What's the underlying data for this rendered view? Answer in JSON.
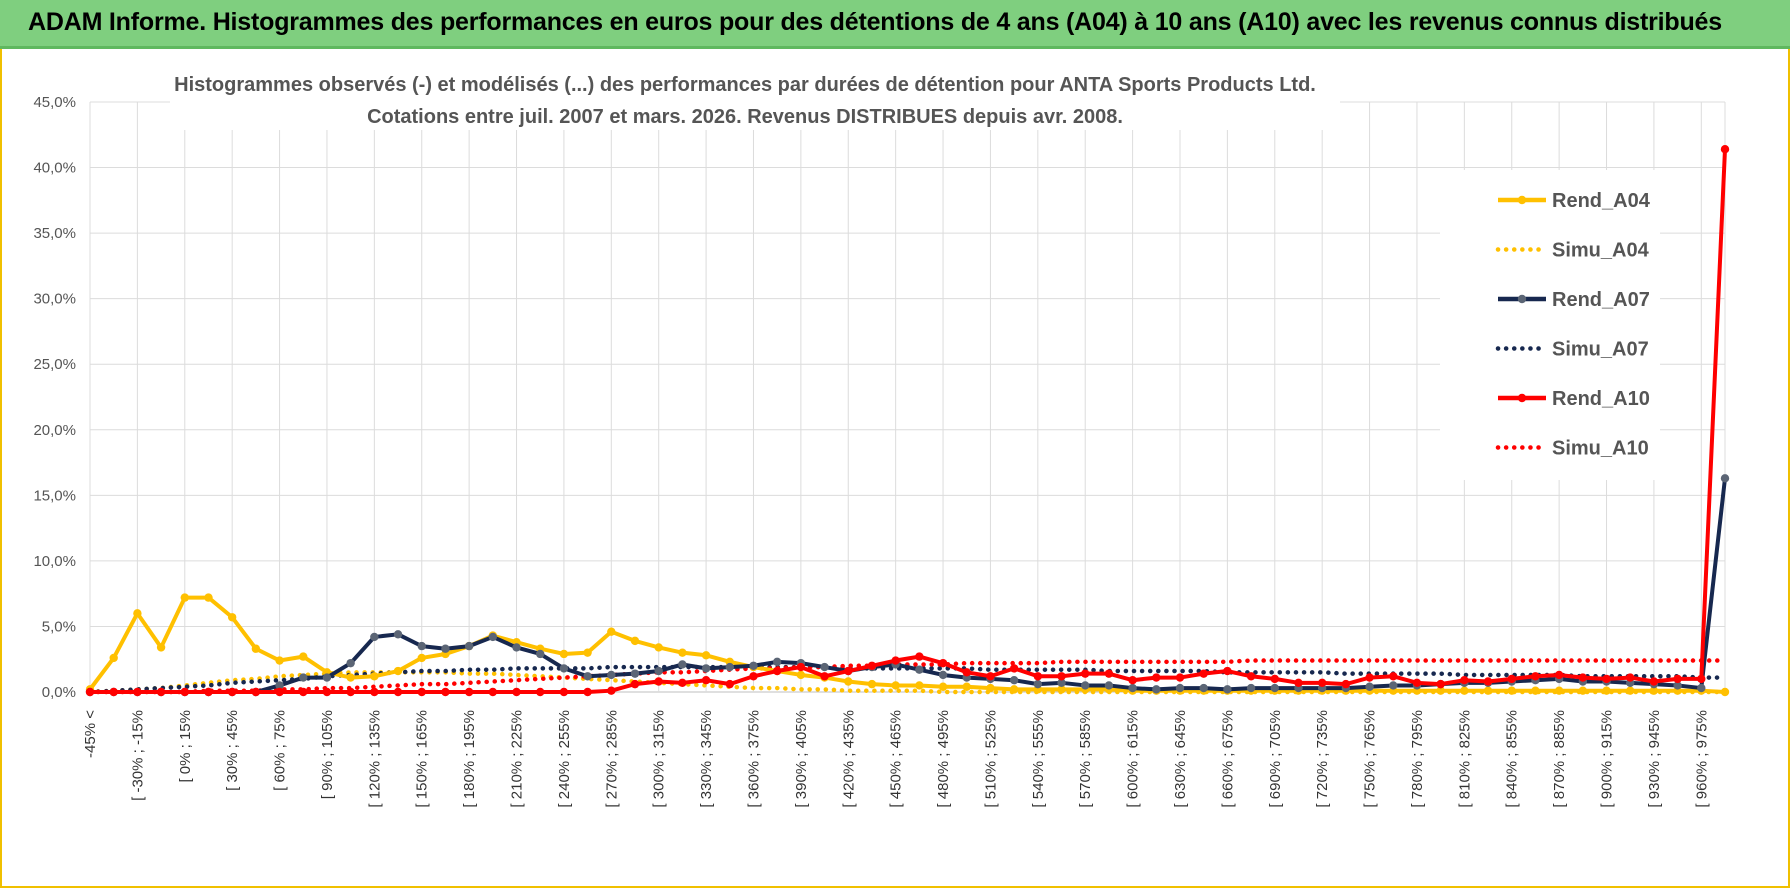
{
  "header": {
    "title": "ADAM Informe. Histogrammes des performances en euros pour des détentions de 4 ans (A04) à 10 ans (A10) avec les revenus connus distribués"
  },
  "colors": {
    "header_bg": "#7fcf7f",
    "rend_a04": "#ffc000",
    "rend_a07": "#17284f",
    "rend_a10": "#ff0000",
    "marker_a07": "#5b6575"
  },
  "chart_data": {
    "type": "line",
    "title": "Histogrammes observés (-) et modélisés (...) des performances par durées de détention pour ANTA Sports Products Ltd.",
    "subtitle": "Cotations entre juil. 2007 et mars. 2026. Revenus DISTRIBUES depuis avr. 2008.",
    "xlabel": "",
    "ylabel": "",
    "ylim": [
      0,
      45
    ],
    "yticks": [
      "0,0%",
      "5,0%",
      "10,0%",
      "15,0%",
      "20,0%",
      "25,0%",
      "30,0%",
      "35,0%",
      "40,0%",
      "45,0%"
    ],
    "x_tick_labels": [
      "-45% <",
      "[ -30% ; -15%",
      "[ 0% ; 15%",
      "[ 30% ; 45%",
      "[ 60% ; 75%",
      "[ 90% ; 105%",
      "[ 120% ; 135%",
      "[ 150% ; 165%",
      "[ 180% ; 195%",
      "[ 210% ; 225%",
      "[ 240% ; 255%",
      "[ 270% ; 285%",
      "[ 300% ; 315%",
      "[ 330% ; 345%",
      "[ 360% ; 375%",
      "[ 390% ; 405%",
      "[ 420% ; 435%",
      "[ 450% ; 465%",
      "[ 480% ; 495%",
      "[ 510% ; 525%",
      "[ 540% ; 555%",
      "[ 570% ; 585%",
      "[ 600% ; 615%",
      "[ 630% ; 645%",
      "[ 660% ; 675%",
      "[ 690% ; 705%",
      "[ 720% ; 735%",
      "[ 750% ; 765%",
      "[ 780% ; 795%",
      "[ 810% ; 825%",
      "[ 840% ; 855%",
      "[ 870% ; 885%",
      "[ 900% ; 915%",
      "[ 930% ; 945%",
      "[ 960% ; 975%"
    ],
    "n_points": 70,
    "series": [
      {
        "name": "Rend_A04",
        "style": "solid",
        "color": "#ffc000",
        "values": [
          0.2,
          2.6,
          6.0,
          3.4,
          7.2,
          7.2,
          5.7,
          3.3,
          2.4,
          2.7,
          1.5,
          1.1,
          1.2,
          1.6,
          2.6,
          2.9,
          3.5,
          4.3,
          3.8,
          3.3,
          2.9,
          3.0,
          4.6,
          3.9,
          3.4,
          3.0,
          2.8,
          2.3,
          1.9,
          1.6,
          1.3,
          1.1,
          0.8,
          0.6,
          0.5,
          0.5,
          0.4,
          0.4,
          0.3,
          0.2,
          0.2,
          0.2,
          0.2,
          0.2,
          0.1,
          0.1,
          0.1,
          0.1,
          0.1,
          0.1,
          0.1,
          0.1,
          0.1,
          0.1,
          0.1,
          0.1,
          0.1,
          0.1,
          0.1,
          0.1,
          0.1,
          0.1,
          0.1,
          0.1,
          0.1,
          0.1,
          0.1,
          0.1,
          0.1,
          0.0
        ]
      },
      {
        "name": "Simu_A04",
        "style": "dotted",
        "color": "#ffc000",
        "values": [
          0.0,
          0.1,
          0.2,
          0.3,
          0.5,
          0.7,
          0.9,
          1.0,
          1.2,
          1.3,
          1.4,
          1.5,
          1.5,
          1.5,
          1.5,
          1.5,
          1.4,
          1.4,
          1.3,
          1.2,
          1.1,
          1.0,
          0.9,
          0.8,
          0.7,
          0.6,
          0.5,
          0.4,
          0.3,
          0.3,
          0.2,
          0.2,
          0.1,
          0.1,
          0.1,
          0.1,
          0.0,
          0.0,
          0.0,
          0.0,
          0.0,
          0.0,
          0.0,
          0.0,
          0.0,
          0.0,
          0.0,
          0.0,
          0.0,
          0.0,
          0.0,
          0.0,
          0.0,
          0.0,
          0.0,
          0.0,
          0.0,
          0.0,
          0.0,
          0.0,
          0.0,
          0.0,
          0.0,
          0.0,
          0.0,
          0.0,
          0.0,
          0.0,
          0.0,
          0.0
        ]
      },
      {
        "name": "Rend_A07",
        "style": "solid",
        "color": "#17284f",
        "values": [
          0.0,
          0.0,
          0.0,
          0.0,
          0.0,
          0.0,
          0.0,
          0.0,
          0.5,
          1.1,
          1.1,
          2.2,
          4.2,
          4.4,
          3.5,
          3.3,
          3.5,
          4.2,
          3.4,
          2.9,
          1.8,
          1.2,
          1.3,
          1.4,
          1.6,
          2.1,
          1.8,
          1.9,
          2.0,
          2.3,
          2.2,
          1.9,
          1.6,
          1.9,
          2.1,
          1.7,
          1.3,
          1.1,
          1.0,
          0.9,
          0.6,
          0.7,
          0.5,
          0.5,
          0.3,
          0.2,
          0.3,
          0.3,
          0.2,
          0.3,
          0.3,
          0.3,
          0.3,
          0.3,
          0.4,
          0.5,
          0.5,
          0.6,
          0.7,
          0.7,
          0.8,
          0.9,
          1.0,
          0.8,
          0.8,
          0.7,
          0.6,
          0.5,
          0.3,
          16.3
        ]
      },
      {
        "name": "Simu_A07",
        "style": "dotted",
        "color": "#17284f",
        "values": [
          0.0,
          0.1,
          0.2,
          0.3,
          0.4,
          0.5,
          0.7,
          0.8,
          0.9,
          1.0,
          1.2,
          1.3,
          1.4,
          1.5,
          1.6,
          1.6,
          1.7,
          1.7,
          1.8,
          1.8,
          1.8,
          1.8,
          1.9,
          1.9,
          1.9,
          1.9,
          1.9,
          1.9,
          1.9,
          1.9,
          1.9,
          1.9,
          1.8,
          1.8,
          1.8,
          1.8,
          1.8,
          1.8,
          1.7,
          1.7,
          1.7,
          1.7,
          1.7,
          1.6,
          1.6,
          1.6,
          1.6,
          1.6,
          1.5,
          1.5,
          1.5,
          1.5,
          1.5,
          1.4,
          1.4,
          1.4,
          1.4,
          1.4,
          1.3,
          1.3,
          1.3,
          1.3,
          1.3,
          1.2,
          1.2,
          1.2,
          1.2,
          1.2,
          1.1,
          1.1
        ]
      },
      {
        "name": "Rend_A10",
        "style": "solid",
        "color": "#ff0000",
        "values": [
          0.0,
          0.0,
          0.0,
          0.0,
          0.0,
          0.0,
          0.0,
          0.0,
          0.0,
          0.0,
          0.0,
          0.0,
          0.0,
          0.0,
          0.0,
          0.0,
          0.0,
          0.0,
          0.0,
          0.0,
          0.0,
          0.0,
          0.1,
          0.6,
          0.8,
          0.7,
          0.9,
          0.6,
          1.2,
          1.6,
          1.9,
          1.2,
          1.6,
          2.0,
          2.4,
          2.7,
          2.2,
          1.5,
          1.2,
          1.8,
          1.2,
          1.2,
          1.4,
          1.4,
          0.9,
          1.1,
          1.1,
          1.4,
          1.6,
          1.2,
          1.0,
          0.7,
          0.7,
          0.6,
          1.1,
          1.2,
          0.7,
          0.6,
          0.9,
          0.8,
          1.0,
          1.2,
          1.3,
          1.1,
          1.0,
          1.1,
          0.8,
          1.0,
          1.0,
          41.4
        ]
      },
      {
        "name": "Simu_A10",
        "style": "dotted",
        "color": "#ff0000",
        "values": [
          0.0,
          0.0,
          0.0,
          0.0,
          0.0,
          0.1,
          0.1,
          0.1,
          0.2,
          0.2,
          0.3,
          0.3,
          0.4,
          0.5,
          0.6,
          0.6,
          0.7,
          0.8,
          0.9,
          1.0,
          1.1,
          1.2,
          1.3,
          1.4,
          1.5,
          1.5,
          1.6,
          1.7,
          1.8,
          1.8,
          1.9,
          1.9,
          2.0,
          2.0,
          2.1,
          2.1,
          2.1,
          2.2,
          2.2,
          2.2,
          2.2,
          2.3,
          2.3,
          2.3,
          2.3,
          2.3,
          2.3,
          2.3,
          2.3,
          2.4,
          2.4,
          2.4,
          2.4,
          2.4,
          2.4,
          2.4,
          2.4,
          2.4,
          2.4,
          2.4,
          2.4,
          2.4,
          2.4,
          2.4,
          2.4,
          2.4,
          2.4,
          2.4,
          2.4,
          2.4
        ]
      }
    ],
    "legend": {
      "placement": "right",
      "entries": [
        "Rend_A04",
        "Simu_A04",
        "Rend_A07",
        "Simu_A07",
        "Rend_A10",
        "Simu_A10"
      ]
    }
  }
}
